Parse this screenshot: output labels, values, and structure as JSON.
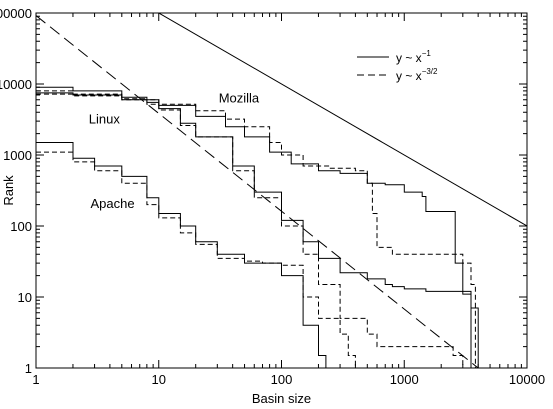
{
  "chart_data": {
    "type": "line",
    "xlabel": "Basin size",
    "ylabel": "Rank",
    "xscale": "log",
    "yscale": "log",
    "xlim": [
      1,
      10000
    ],
    "ylim": [
      1,
      100000
    ],
    "x_tick_labels": [
      "1",
      "10",
      "100",
      "1000",
      "10000"
    ],
    "y_tick_labels": [
      "1",
      "10",
      "100",
      "1000",
      "10000",
      "100000"
    ],
    "grid": false,
    "legend_position": "top-right",
    "legend": [
      {
        "base": "y ~ x",
        "exponent": "−1",
        "style": "solid"
      },
      {
        "base": "y ~ x",
        "exponent": "−3/2",
        "style": "dashed"
      }
    ],
    "annotations": [
      {
        "text": "Mozilla",
        "x": 45,
        "y": 5500
      },
      {
        "text": "Linux",
        "x": 3.6,
        "y": 2800
      },
      {
        "text": "Apache",
        "x": 4.2,
        "y": 180
      }
    ],
    "reference_lines": [
      {
        "name": "y ~ x^-1",
        "style": "solid",
        "x": [
          1,
          10000
        ],
        "y": [
          1000000,
          100
        ]
      },
      {
        "name": "y ~ x^-3/2",
        "style": "dashed",
        "x": [
          1,
          4000
        ],
        "y": [
          92000,
          1
        ]
      }
    ],
    "series": [
      {
        "group": "Mozilla",
        "style": "solid",
        "x": [
          1,
          2,
          5,
          10,
          20,
          35,
          50,
          80,
          120,
          200,
          300,
          500,
          700,
          1000,
          1400,
          1500,
          2500,
          2600,
          3000,
          3500,
          3800,
          4000
        ],
        "y": [
          7500,
          7000,
          6000,
          5000,
          3500,
          2500,
          1800,
          1100,
          750,
          600,
          550,
          400,
          380,
          300,
          260,
          160,
          160,
          30,
          12,
          7,
          7,
          1
        ]
      },
      {
        "group": "Mozilla",
        "style": "dashed",
        "x": [
          1,
          2,
          5,
          10,
          20,
          35,
          50,
          80,
          100,
          150,
          250,
          400,
          500,
          550,
          600,
          800,
          1500,
          2000,
          3000,
          3500,
          3800
        ],
        "y": [
          7200,
          6800,
          6000,
          5200,
          4200,
          3200,
          2500,
          1500,
          1000,
          700,
          650,
          600,
          400,
          150,
          50,
          40,
          40,
          40,
          30,
          15,
          1
        ]
      },
      {
        "group": "Linux",
        "style": "solid",
        "x": [
          1,
          2,
          5,
          8,
          10,
          15,
          20,
          40,
          60,
          100,
          150,
          200,
          300,
          500,
          700,
          800,
          1000,
          1500,
          2000,
          3000,
          3500
        ],
        "y": [
          9000,
          8000,
          6500,
          5500,
          4500,
          2800,
          1800,
          700,
          300,
          120,
          60,
          35,
          22,
          18,
          15,
          14,
          13,
          12,
          12,
          11,
          1
        ]
      },
      {
        "group": "Linux",
        "style": "dashed",
        "x": [
          1,
          2,
          5,
          8,
          10,
          15,
          20,
          40,
          60,
          100,
          150,
          200,
          300,
          500,
          600,
          1000,
          1500,
          2000,
          2500,
          3000
        ],
        "y": [
          8000,
          7200,
          6200,
          5200,
          4300,
          2600,
          1800,
          600,
          250,
          100,
          40,
          15,
          5,
          3,
          2,
          2,
          2,
          2,
          1.5,
          1
        ]
      },
      {
        "group": "Apache",
        "style": "solid",
        "x": [
          1,
          1.5,
          2,
          3,
          5,
          8,
          10,
          15,
          20,
          30,
          50,
          70,
          100,
          150,
          200,
          230
        ],
        "y": [
          1500,
          1500,
          900,
          700,
          500,
          250,
          150,
          100,
          60,
          40,
          30,
          30,
          20,
          4,
          1.5,
          1
        ]
      },
      {
        "group": "Apache",
        "style": "dashed",
        "x": [
          1,
          1.5,
          2,
          3,
          5,
          8,
          10,
          15,
          20,
          30,
          50,
          70,
          100,
          150,
          200,
          300,
          350,
          400
        ],
        "y": [
          1100,
          1100,
          800,
          600,
          400,
          200,
          130,
          80,
          55,
          35,
          32,
          30,
          28,
          10,
          5,
          3,
          1.5,
          1
        ]
      }
    ]
  }
}
